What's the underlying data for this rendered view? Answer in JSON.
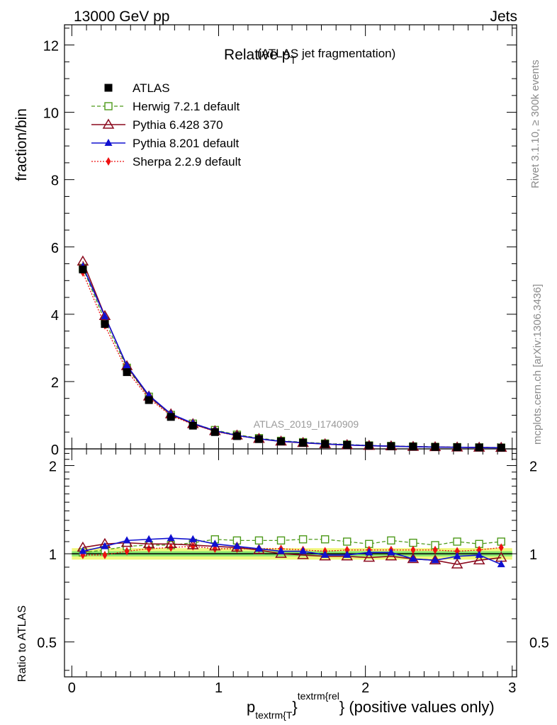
{
  "header": {
    "left": "13000 GeV pp",
    "right": "Jets"
  },
  "side_labels": {
    "rivet": "Rivet 3.1.10, ≥ 300k events",
    "mcplots": "mcplots.cern.ch [arXiv:1306.3436]"
  },
  "chart_data": [
    {
      "panel": "main",
      "type": "scatter",
      "title_main": "Relative p",
      "title_sub": "T",
      "title_rest": "(ATLAS jet fragmentation)",
      "ylabel": "fraction/bin",
      "watermark": "ATLAS_2019_I1740909",
      "ylim": [
        0,
        12.6
      ],
      "xlim": [
        -0.05,
        3.03
      ],
      "yticks": [
        "0",
        "2",
        "4",
        "6",
        "8",
        "10",
        "12"
      ],
      "x": [
        0.075,
        0.225,
        0.375,
        0.525,
        0.675,
        0.825,
        0.975,
        1.125,
        1.275,
        1.425,
        1.575,
        1.725,
        1.875,
        2.025,
        2.175,
        2.325,
        2.475,
        2.625,
        2.775,
        2.925
      ],
      "series": [
        {
          "name": "ATLAS",
          "color": "#000000",
          "values": [
            5.33,
            3.71,
            2.28,
            1.45,
            0.95,
            0.69,
            0.5,
            0.38,
            0.29,
            0.22,
            0.18,
            0.145,
            0.118,
            0.096,
            0.08,
            0.067,
            0.057,
            0.049,
            0.042,
            0.036
          ]
        },
        {
          "name": "Herwig 7.2.1 default",
          "color": "#4d9a1a",
          "values": [
            5.38,
            3.81,
            2.41,
            1.55,
            1.01,
            0.75,
            0.56,
            0.42,
            0.32,
            0.24,
            0.2,
            0.16,
            0.13,
            0.103,
            0.088,
            0.073,
            0.06,
            0.053,
            0.045,
            0.039
          ]
        },
        {
          "name": "Pythia 6.428 370",
          "color": "#8b0a1e",
          "values": [
            5.57,
            3.95,
            2.46,
            1.56,
            1.03,
            0.74,
            0.53,
            0.4,
            0.3,
            0.22,
            0.18,
            0.142,
            0.115,
            0.093,
            0.078,
            0.064,
            0.054,
            0.045,
            0.04,
            0.035
          ]
        },
        {
          "name": "Pythia 8.201 default",
          "color": "#1010d0",
          "values": [
            5.42,
            3.94,
            2.48,
            1.59,
            1.04,
            0.76,
            0.54,
            0.4,
            0.3,
            0.225,
            0.185,
            0.146,
            0.117,
            0.097,
            0.081,
            0.064,
            0.054,
            0.048,
            0.041,
            0.033
          ]
        },
        {
          "name": "Sherpa 2.2.9 default",
          "color": "#ee1111",
          "values": [
            5.24,
            3.67,
            2.32,
            1.5,
            0.99,
            0.73,
            0.52,
            0.39,
            0.3,
            0.226,
            0.185,
            0.148,
            0.12,
            0.098,
            0.082,
            0.069,
            0.058,
            0.05,
            0.043,
            0.037
          ]
        }
      ]
    },
    {
      "panel": "ratio",
      "type": "scatter",
      "ylabel": "Ratio to ATLAS",
      "xlabel_main": "p",
      "xlabel_sub": "textrm{T",
      "xlabel_brace": "}",
      "xlabel_sup": "textrm{rel",
      "xlabel_rest": "} (positive values only)",
      "ylim": [
        0.38,
        2.28
      ],
      "xlim": [
        -0.05,
        3.03
      ],
      "xticks": [
        "0",
        "1",
        "2",
        "3"
      ],
      "yticks": [
        "0.5",
        "1",
        "2"
      ],
      "x": [
        0.075,
        0.225,
        0.375,
        0.525,
        0.675,
        0.825,
        0.975,
        1.125,
        1.275,
        1.425,
        1.575,
        1.725,
        1.875,
        2.025,
        2.175,
        2.325,
        2.475,
        2.625,
        2.775,
        2.925
      ],
      "band_inner": 0.02,
      "band_outer": 0.045,
      "band_colors": {
        "inner": "#86e56e",
        "outer": "#f0f77e"
      },
      "series": [
        {
          "name": "Herwig 7.2.1 default",
          "color": "#4d9a1a",
          "values": [
            1.01,
            1.03,
            1.06,
            1.07,
            1.07,
            1.09,
            1.12,
            1.11,
            1.11,
            1.11,
            1.12,
            1.12,
            1.1,
            1.08,
            1.11,
            1.09,
            1.07,
            1.1,
            1.08,
            1.1
          ]
        },
        {
          "name": "Pythia 6.428 370",
          "color": "#8b0a1e",
          "values": [
            1.05,
            1.08,
            1.09,
            1.08,
            1.08,
            1.07,
            1.06,
            1.05,
            1.03,
            1.0,
            0.99,
            0.98,
            0.98,
            0.97,
            0.98,
            0.96,
            0.95,
            0.92,
            0.95,
            0.97
          ]
        },
        {
          "name": "Pythia 8.201 default",
          "color": "#1010d0",
          "values": [
            1.02,
            1.06,
            1.11,
            1.12,
            1.13,
            1.12,
            1.08,
            1.06,
            1.04,
            1.02,
            1.02,
            0.99,
            0.99,
            1.01,
            1.01,
            0.96,
            0.95,
            0.98,
            0.99,
            0.92
          ]
        },
        {
          "name": "Sherpa 2.2.9 default",
          "color": "#ee1111",
          "values": [
            0.99,
            0.99,
            1.02,
            1.04,
            1.05,
            1.06,
            1.04,
            1.04,
            1.04,
            1.04,
            1.03,
            1.02,
            1.03,
            1.03,
            1.03,
            1.03,
            1.03,
            1.02,
            1.03,
            1.05
          ]
        }
      ]
    }
  ]
}
